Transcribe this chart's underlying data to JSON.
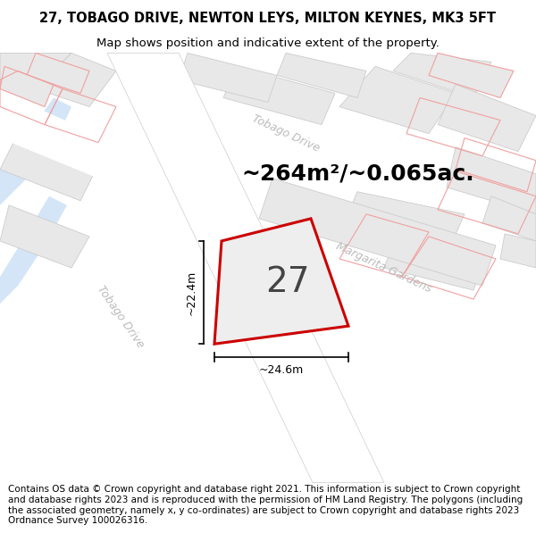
{
  "title_line1": "27, TOBAGO DRIVE, NEWTON LEYS, MILTON KEYNES, MK3 5FT",
  "title_line2": "Map shows position and indicative extent of the property.",
  "area_text": "~264m²/~0.065ac.",
  "plot_number": "27",
  "dim_width": "~24.6m",
  "dim_height": "~22.4m",
  "road_label_tobago_diag": "Tobago Drive",
  "road_label_tobago_top": "Tobago Drive",
  "road_label_margarita": "Margarita Gardens",
  "footer_text": "Contains OS data © Crown copyright and database right 2021. This information is subject to Crown copyright and database rights 2023 and is reproduced with the permission of HM Land Registry. The polygons (including the associated geometry, namely x, y co-ordinates) are subject to Crown copyright and database rights 2023 Ordnance Survey 100026316.",
  "map_bg": "#ffffff",
  "plot_fill": "#eeeeee",
  "plot_edge": "#cc0000",
  "water_color": "#c8dff5",
  "building_fill": "#e8e8e8",
  "building_edge": "#cccccc",
  "pink_edge": "#f0a0a0",
  "road_label_color": "#bbbbbb",
  "title_fontsize": 10.5,
  "subtitle_fontsize": 9.5,
  "area_fontsize": 18,
  "plot_number_fontsize": 28,
  "dim_fontsize": 9,
  "road_label_fontsize": 9,
  "footer_fontsize": 7.5
}
